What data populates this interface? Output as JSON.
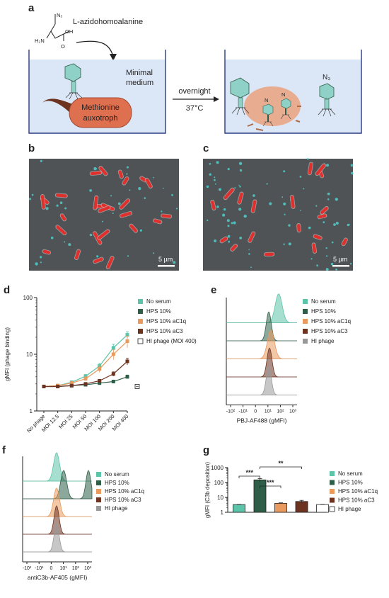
{
  "panels": {
    "a": {
      "letter": "a",
      "molecule_label": "L-azidohomoalanine",
      "medium_label_1": "Minimal",
      "medium_label_2": "medium",
      "cell_label_1": "Methionine",
      "cell_label_2": "auxotroph",
      "arrow_label_1": "overnight",
      "arrow_label_2": "37°C",
      "n3_label": "N₃",
      "azide_label": "N",
      "hn_label": "H₂N",
      "oh_label": "OH",
      "o_label": "O"
    },
    "b": {
      "letter": "b",
      "scalebar": "5 µm"
    },
    "c": {
      "letter": "c",
      "scalebar": "5 µm"
    },
    "d": {
      "letter": "d"
    },
    "e": {
      "letter": "e",
      "xlabel": "PBJ-AF488 (gMFI)"
    },
    "f": {
      "letter": "f",
      "xlabel": "antiC3b-AF405 (gMFI)"
    },
    "g": {
      "letter": "g"
    }
  },
  "colors": {
    "no_serum": "#5cc4a8",
    "hps10": "#2e5e48",
    "ac1q": "#e99a5e",
    "ac3": "#6b3320",
    "hi_phage": "#999999",
    "cell": "#de6f4f",
    "bath": "#dbe7f7",
    "phage": "#8fd1c6"
  },
  "chart_data": [
    {
      "panel": "d",
      "type": "line",
      "categories": [
        "No phage",
        "MOI 12.5",
        "MOI 25",
        "MOI 50",
        "MOI 100",
        "MOI 200",
        "MOI 400"
      ],
      "ylabel": "gMFI (phage binding)",
      "yscale": "log",
      "ylim": [
        1,
        100
      ],
      "yticks": [
        "1",
        "10",
        "100"
      ],
      "series": [
        {
          "name": "No serum",
          "values": [
            2.7,
            2.8,
            3.2,
            4.1,
            6.2,
            13,
            22
          ],
          "errors": [
            0.1,
            0.1,
            0.2,
            0.3,
            0.7,
            2,
            3
          ]
        },
        {
          "name": "HPS 10%",
          "values": [
            2.7,
            2.7,
            2.8,
            2.9,
            3.1,
            3.3,
            4.0
          ],
          "errors": [
            0.1,
            0.1,
            0.1,
            0.1,
            0.1,
            0.2,
            0.3
          ]
        },
        {
          "name": "HPS 10% aC1q",
          "values": [
            2.7,
            2.8,
            3.1,
            3.7,
            5.5,
            10,
            17
          ],
          "errors": [
            0.1,
            0.1,
            0.2,
            0.3,
            0.7,
            2,
            4
          ]
        },
        {
          "name": "HPS 10% aC3",
          "values": [
            2.7,
            2.7,
            2.8,
            3.0,
            3.4,
            4.5,
            7.5
          ],
          "errors": [
            0.1,
            0.1,
            0.1,
            0.1,
            0.2,
            0.4,
            1
          ]
        },
        {
          "name": "HI phage (MOI 400)",
          "values": [
            null,
            null,
            null,
            null,
            null,
            null,
            2.7
          ],
          "errors": [
            0,
            0,
            0,
            0,
            0,
            0,
            0.1
          ],
          "marker": "open-square"
        }
      ]
    },
    {
      "panel": "e",
      "type": "area",
      "title": "",
      "xlabel": "PBJ-AF488 (gMFI)",
      "xscale": "biexponential",
      "xticks": [
        "-10²",
        "-10¹",
        "0",
        "10¹",
        "10²",
        "10³"
      ],
      "series": [
        {
          "name": "No serum",
          "peak": 600
        },
        {
          "name": "HPS 10%",
          "peak": 100
        },
        {
          "name": "HPS 10% aC1q",
          "peak": 200
        },
        {
          "name": "HPS 10% aC3",
          "peak": 100
        },
        {
          "name": "HI phage",
          "peak": 80
        }
      ]
    },
    {
      "panel": "f",
      "type": "area",
      "xlabel": "antiC3b-AF405 (gMFI)",
      "xscale": "biexponential",
      "xticks": [
        "-10²",
        "-10¹",
        "0",
        "10¹",
        "10²",
        "10³"
      ],
      "series": [
        {
          "name": "No serum",
          "peak": 30
        },
        {
          "name": "HPS 10%",
          "peak": 150
        },
        {
          "name": "HPS 10% aC1q",
          "peak": 30
        },
        {
          "name": "HPS 10% aC3",
          "peak": 30
        },
        {
          "name": "HI phage",
          "peak": 30
        }
      ]
    },
    {
      "panel": "g",
      "type": "bar",
      "categories": [
        "No serum",
        "HPS 10%",
        "HPS 10% aC1q",
        "HPS 10% aC3",
        "HI phage"
      ],
      "values": [
        3.3,
        150,
        4.0,
        5.3,
        3.3
      ],
      "errors": [
        0.1,
        35,
        0.3,
        1.0,
        0.1
      ],
      "ylabel": "gMFI (C3b deposition)",
      "yscale": "log",
      "ylim": [
        1,
        1000
      ],
      "yticks": [
        "1",
        "10",
        "100",
        "1000"
      ],
      "annotations": [
        "***",
        "***",
        "**"
      ]
    }
  ],
  "legend_d": [
    "No serum",
    "HPS 10%",
    "HPS 10% aC1q",
    "HPS 10% aC3",
    "HI phage (MOI 400)"
  ],
  "legend_e": [
    "No serum",
    "HPS 10%",
    "HPS 10% aC1q",
    "HPS 10% aC3",
    "HI phage"
  ],
  "legend_f": [
    "No serum",
    "HPS 10%",
    "HPS 10% aC1q",
    "HPS 10% aC3",
    "HI phage"
  ],
  "legend_g": [
    "No serum",
    "HPS 10%",
    "HPS 10% aC1q",
    "HPS 10% aC3",
    "HI phage"
  ]
}
